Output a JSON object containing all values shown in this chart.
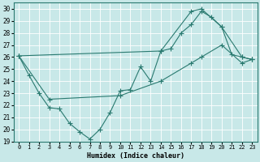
{
  "xlabel": "Humidex (Indice chaleur)",
  "bg_color": "#c8e8e8",
  "grid_color": "#ffffff",
  "line_color": "#2a7a70",
  "xlim": [
    -0.5,
    23.5
  ],
  "ylim": [
    19,
    30.5
  ],
  "xticks": [
    0,
    1,
    2,
    3,
    4,
    5,
    6,
    7,
    8,
    9,
    10,
    11,
    12,
    13,
    14,
    15,
    16,
    17,
    18,
    19,
    20,
    21,
    22,
    23
  ],
  "yticks": [
    19,
    20,
    21,
    22,
    23,
    24,
    25,
    26,
    27,
    28,
    29,
    30
  ],
  "line1_x": [
    0,
    1,
    2,
    3,
    4,
    5,
    6,
    7,
    8,
    9,
    10,
    11,
    12,
    13,
    14,
    15,
    16,
    17,
    18,
    19,
    20,
    21,
    22,
    23
  ],
  "line1_y": [
    26.1,
    24.5,
    23.0,
    21.8,
    21.7,
    20.5,
    19.8,
    19.2,
    20.0,
    21.4,
    23.2,
    23.3,
    25.2,
    24.0,
    26.5,
    26.7,
    28.0,
    28.7,
    29.8,
    29.3,
    28.5,
    26.2,
    26.0,
    25.8
  ],
  "line2_x": [
    0,
    3,
    10,
    14,
    17,
    18,
    20,
    22,
    23
  ],
  "line2_y": [
    26.1,
    22.5,
    22.8,
    24.0,
    25.5,
    26.0,
    27.0,
    25.5,
    25.8
  ],
  "line3_x": [
    0,
    14,
    17,
    18,
    20,
    22,
    23
  ],
  "line3_y": [
    26.1,
    26.5,
    29.8,
    30.0,
    28.5,
    26.0,
    25.8
  ]
}
